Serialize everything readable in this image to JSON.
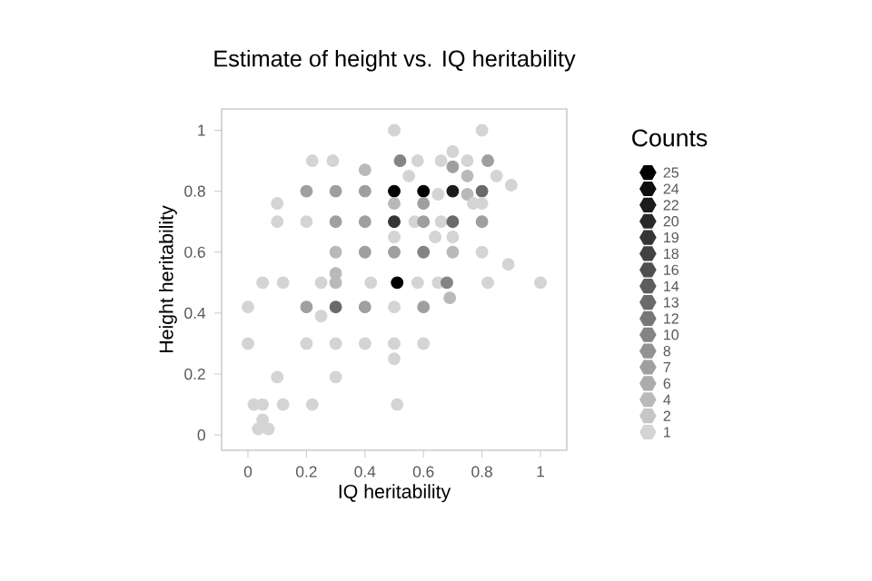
{
  "chart_data": {
    "type": "scatter",
    "title": "Estimate of height vs. IQ heritability",
    "xlabel": "IQ heritability",
    "ylabel": "Height heritability",
    "clabel": "Counts",
    "xlim": [
      -0.09,
      1.09
    ],
    "ylim": [
      -0.05,
      1.07
    ],
    "xticks": [
      0,
      0.2,
      0.4,
      0.6,
      0.8,
      1
    ],
    "yticks": [
      0,
      0.2,
      0.4,
      0.6,
      0.8,
      1
    ],
    "clim": [
      1,
      25
    ],
    "cticks": [
      1,
      {
        "value": 2.5,
        "label": "2"
      },
      4,
      {
        "value": 5.5,
        "label": "6"
      },
      7,
      {
        "value": 8.5,
        "label": "8"
      },
      10,
      {
        "value": 11.5,
        "label": "12"
      },
      13,
      {
        "value": 14.5,
        "label": "14"
      },
      16,
      {
        "value": 17.5,
        "label": "18"
      },
      19,
      {
        "value": 20.5,
        "label": "20"
      },
      22,
      {
        "value": 23.5,
        "label": "24"
      },
      25
    ],
    "x": [
      0.5,
      0.8,
      0.22,
      0.29,
      0.4,
      0.52,
      0.58,
      0.66,
      0.7,
      0.75,
      0.82,
      0.7,
      0.55,
      0.75,
      0.85,
      0.9,
      0.2,
      0.3,
      0.4,
      0.5,
      0.6,
      0.7,
      0.8,
      0.65,
      0.75,
      0.1,
      0.5,
      0.6,
      0.77,
      0.8,
      0.1,
      0.2,
      0.3,
      0.4,
      0.5,
      0.57,
      0.6,
      0.66,
      0.7,
      0.8,
      0.5,
      0.64,
      0.7,
      0.3,
      0.4,
      0.5,
      0.6,
      0.7,
      0.8,
      0.89,
      0.3,
      0.05,
      0.12,
      0.25,
      0.3,
      0.42,
      0.51,
      0.58,
      0.65,
      0.68,
      0.82,
      1.0,
      0.69,
      0.0,
      0.2,
      0.25,
      0.3,
      0.4,
      0.5,
      0.6,
      0.0,
      0.2,
      0.3,
      0.4,
      0.5,
      0.6,
      0.5,
      0.1,
      0.3,
      0.02,
      0.05,
      0.12,
      0.22,
      0.51,
      0.05,
      0.035,
      0.07
    ],
    "values": [
      1.0,
      1.0,
      0.9,
      0.9,
      0.87,
      0.9,
      0.9,
      0.9,
      0.93,
      0.9,
      0.9,
      0.88,
      0.85,
      0.85,
      0.85,
      0.82,
      0.8,
      0.8,
      0.8,
      0.8,
      0.8,
      0.8,
      0.8,
      0.79,
      0.79,
      0.76,
      0.76,
      0.76,
      0.76,
      0.76,
      0.7,
      0.7,
      0.7,
      0.7,
      0.7,
      0.7,
      0.7,
      0.7,
      0.7,
      0.7,
      0.65,
      0.65,
      0.65,
      0.6,
      0.6,
      0.6,
      0.6,
      0.6,
      0.6,
      0.56,
      0.53,
      0.5,
      0.5,
      0.5,
      0.5,
      0.5,
      0.5,
      0.5,
      0.5,
      0.5,
      0.5,
      0.5,
      0.45,
      0.42,
      0.42,
      0.39,
      0.42,
      0.42,
      0.42,
      0.42,
      0.3,
      0.3,
      0.3,
      0.3,
      0.3,
      0.3,
      0.25,
      0.19,
      0.19,
      0.1,
      0.1,
      0.1,
      0.1,
      0.1,
      0.05,
      0.02,
      0.02
    ],
    "cvalues": [
      1,
      1,
      1,
      1,
      4,
      10,
      1,
      1,
      1,
      1,
      7,
      7,
      1,
      4,
      1,
      1,
      7,
      7,
      7,
      25,
      25,
      22,
      13,
      1,
      4,
      1,
      4,
      7,
      1,
      1,
      1,
      1,
      7,
      7,
      19,
      1,
      7,
      1,
      13,
      7,
      1,
      1,
      1,
      4,
      7,
      7,
      10,
      4,
      1,
      1,
      4,
      1,
      1,
      1,
      4,
      1,
      25,
      1,
      1,
      10,
      1,
      1,
      4,
      1,
      7,
      1,
      13,
      7,
      1,
      7,
      1,
      1,
      1,
      1,
      1,
      1,
      1,
      1,
      1,
      1,
      1,
      1,
      1,
      1,
      1,
      1,
      1
    ]
  }
}
